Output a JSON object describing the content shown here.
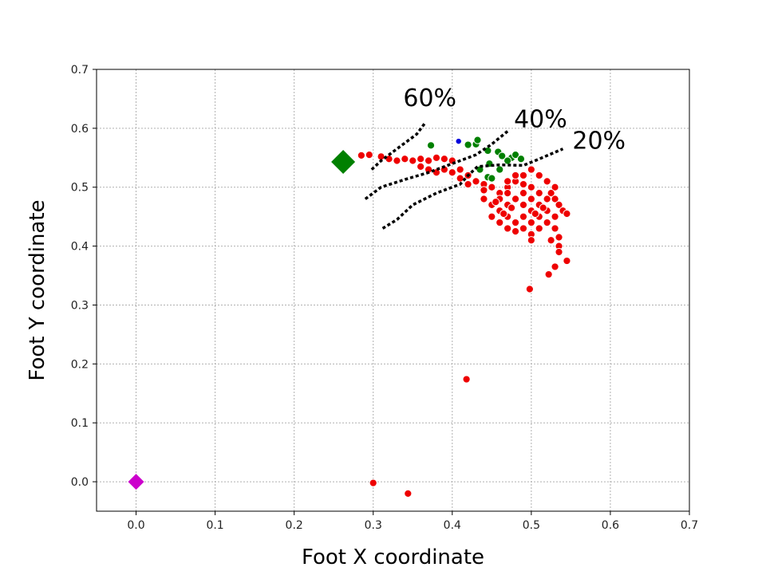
{
  "chart_data": {
    "type": "scatter",
    "xlabel": "Foot X coordinate",
    "ylabel": "Foot Y coordinate",
    "xlim": [
      -0.05,
      0.7
    ],
    "ylim": [
      -0.05,
      0.7
    ],
    "xticks": [
      "0.0",
      "0.1",
      "0.2",
      "0.3",
      "0.4",
      "0.5",
      "0.6",
      "0.7"
    ],
    "yticks": [
      "0.0",
      "0.1",
      "0.2",
      "0.3",
      "0.4",
      "0.5",
      "0.6",
      "0.7"
    ],
    "grid": true,
    "colors": {
      "red": "#ee0000",
      "green": "#008000",
      "blue": "#0000dd",
      "magenta": "#cc00cc",
      "annotation": "#000000"
    },
    "markers": [
      {
        "shape": "diamond",
        "color": "#008000",
        "x": 0.262,
        "y": 0.543,
        "size": "large"
      },
      {
        "shape": "diamond",
        "color": "#cc00cc",
        "x": 0.0,
        "y": 0.0,
        "size": "medium"
      }
    ],
    "series": [
      {
        "color": "#ee0000",
        "points": [
          [
            0.285,
            0.554
          ],
          [
            0.295,
            0.555
          ],
          [
            0.31,
            0.552
          ],
          [
            0.32,
            0.548
          ],
          [
            0.33,
            0.545
          ],
          [
            0.34,
            0.548
          ],
          [
            0.35,
            0.545
          ],
          [
            0.36,
            0.548
          ],
          [
            0.37,
            0.545
          ],
          [
            0.38,
            0.55
          ],
          [
            0.39,
            0.548
          ],
          [
            0.4,
            0.545
          ],
          [
            0.36,
            0.535
          ],
          [
            0.37,
            0.53
          ],
          [
            0.38,
            0.525
          ],
          [
            0.39,
            0.53
          ],
          [
            0.4,
            0.525
          ],
          [
            0.41,
            0.53
          ],
          [
            0.42,
            0.52
          ],
          [
            0.41,
            0.515
          ],
          [
            0.43,
            0.51
          ],
          [
            0.44,
            0.505
          ],
          [
            0.45,
            0.5
          ],
          [
            0.42,
            0.505
          ],
          [
            0.44,
            0.495
          ],
          [
            0.46,
            0.49
          ],
          [
            0.47,
            0.5
          ],
          [
            0.48,
            0.51
          ],
          [
            0.49,
            0.52
          ],
          [
            0.5,
            0.53
          ],
          [
            0.51,
            0.52
          ],
          [
            0.52,
            0.51
          ],
          [
            0.53,
            0.5
          ],
          [
            0.525,
            0.49
          ],
          [
            0.53,
            0.48
          ],
          [
            0.535,
            0.47
          ],
          [
            0.54,
            0.46
          ],
          [
            0.53,
            0.45
          ],
          [
            0.52,
            0.44
          ],
          [
            0.51,
            0.43
          ],
          [
            0.5,
            0.42
          ],
          [
            0.49,
            0.43
          ],
          [
            0.48,
            0.44
          ],
          [
            0.47,
            0.45
          ],
          [
            0.46,
            0.46
          ],
          [
            0.45,
            0.47
          ],
          [
            0.44,
            0.48
          ],
          [
            0.45,
            0.45
          ],
          [
            0.46,
            0.44
          ],
          [
            0.47,
            0.43
          ],
          [
            0.48,
            0.425
          ],
          [
            0.49,
            0.45
          ],
          [
            0.5,
            0.46
          ],
          [
            0.51,
            0.47
          ],
          [
            0.52,
            0.48
          ],
          [
            0.5,
            0.5
          ],
          [
            0.49,
            0.49
          ],
          [
            0.48,
            0.48
          ],
          [
            0.47,
            0.47
          ],
          [
            0.5,
            0.48
          ],
          [
            0.51,
            0.49
          ],
          [
            0.52,
            0.46
          ],
          [
            0.51,
            0.45
          ],
          [
            0.49,
            0.47
          ],
          [
            0.47,
            0.49
          ],
          [
            0.46,
            0.48
          ],
          [
            0.5,
            0.44
          ],
          [
            0.53,
            0.43
          ],
          [
            0.535,
            0.415
          ],
          [
            0.535,
            0.4
          ],
          [
            0.535,
            0.39
          ],
          [
            0.525,
            0.41
          ],
          [
            0.5,
            0.41
          ],
          [
            0.48,
            0.52
          ],
          [
            0.47,
            0.51
          ],
          [
            0.49,
            0.505
          ],
          [
            0.455,
            0.475
          ],
          [
            0.465,
            0.455
          ],
          [
            0.475,
            0.465
          ],
          [
            0.505,
            0.455
          ],
          [
            0.515,
            0.465
          ],
          [
            0.545,
            0.455
          ],
          [
            0.545,
            0.375
          ],
          [
            0.53,
            0.365
          ],
          [
            0.522,
            0.352
          ],
          [
            0.498,
            0.327
          ],
          [
            0.418,
            0.174
          ],
          [
            0.3,
            -0.002
          ],
          [
            0.344,
            -0.02
          ]
        ]
      },
      {
        "color": "#008000",
        "points": [
          [
            0.373,
            0.571
          ],
          [
            0.42,
            0.572
          ],
          [
            0.43,
            0.573
          ],
          [
            0.432,
            0.58
          ],
          [
            0.445,
            0.562
          ],
          [
            0.458,
            0.56
          ],
          [
            0.463,
            0.553
          ],
          [
            0.475,
            0.55
          ],
          [
            0.47,
            0.545
          ],
          [
            0.48,
            0.555
          ],
          [
            0.487,
            0.548
          ],
          [
            0.447,
            0.54
          ],
          [
            0.435,
            0.53
          ],
          [
            0.445,
            0.517
          ],
          [
            0.45,
            0.515
          ],
          [
            0.46,
            0.53
          ]
        ]
      },
      {
        "color": "#0000dd",
        "points": [
          [
            0.408,
            0.578
          ]
        ]
      }
    ],
    "annotations": [
      {
        "label": "60%",
        "x": 0.338,
        "y": 0.638,
        "path": [
          [
            0.298,
            0.53
          ],
          [
            0.31,
            0.545
          ],
          [
            0.325,
            0.56
          ],
          [
            0.34,
            0.575
          ],
          [
            0.355,
            0.59
          ],
          [
            0.365,
            0.608
          ]
        ]
      },
      {
        "label": "40%",
        "x": 0.478,
        "y": 0.602,
        "path": [
          [
            0.29,
            0.48
          ],
          [
            0.31,
            0.5
          ],
          [
            0.34,
            0.513
          ],
          [
            0.37,
            0.525
          ],
          [
            0.4,
            0.54
          ],
          [
            0.43,
            0.555
          ],
          [
            0.45,
            0.573
          ],
          [
            0.47,
            0.595
          ]
        ]
      },
      {
        "label": "20%",
        "x": 0.552,
        "y": 0.565,
        "path": [
          [
            0.312,
            0.43
          ],
          [
            0.33,
            0.445
          ],
          [
            0.35,
            0.47
          ],
          [
            0.38,
            0.49
          ],
          [
            0.41,
            0.505
          ],
          [
            0.42,
            0.52
          ],
          [
            0.432,
            0.535
          ],
          [
            0.46,
            0.538
          ],
          [
            0.49,
            0.537
          ],
          [
            0.51,
            0.548
          ],
          [
            0.54,
            0.565
          ]
        ]
      }
    ]
  }
}
